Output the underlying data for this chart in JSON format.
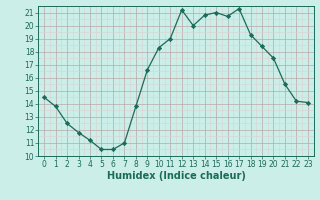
{
  "x": [
    0,
    1,
    2,
    3,
    4,
    5,
    6,
    7,
    8,
    9,
    10,
    11,
    12,
    13,
    14,
    15,
    16,
    17,
    18,
    19,
    20,
    21,
    22,
    23
  ],
  "y": [
    14.5,
    13.8,
    12.5,
    11.8,
    11.2,
    10.5,
    10.5,
    11.0,
    13.8,
    16.6,
    18.3,
    19.0,
    21.2,
    20.0,
    20.8,
    21.0,
    20.7,
    21.3,
    19.3,
    18.4,
    17.5,
    15.5,
    14.2,
    14.1
  ],
  "xlabel": "Humidex (Indice chaleur)",
  "ylim": [
    10,
    21.5
  ],
  "xlim": [
    -0.5,
    23.5
  ],
  "yticks": [
    10,
    11,
    12,
    13,
    14,
    15,
    16,
    17,
    18,
    19,
    20,
    21
  ],
  "xticks": [
    0,
    1,
    2,
    3,
    4,
    5,
    6,
    7,
    8,
    9,
    10,
    11,
    12,
    13,
    14,
    15,
    16,
    17,
    18,
    19,
    20,
    21,
    22,
    23
  ],
  "line_color": "#1a6b5a",
  "marker_color": "#1a6b5a",
  "bg_color": "#cceee8",
  "grid_major_color": "#b8a8a8",
  "grid_minor_color": "#ddd0d0",
  "text_color": "#1a6b5a",
  "tick_fontsize": 5.5,
  "xlabel_fontsize": 7.0
}
